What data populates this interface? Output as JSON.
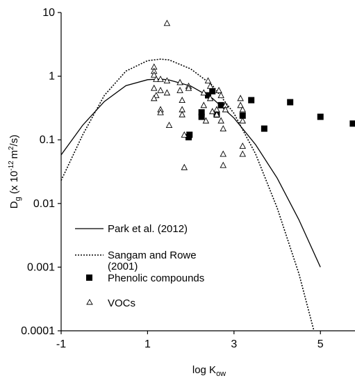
{
  "chart_data": {
    "type": "scatter",
    "title": "",
    "xlabel": {
      "main": "log K",
      "sub": "ow"
    },
    "ylabel": {
      "d": "D",
      "d_sub": "g",
      "open": " (x 10",
      "exp": "-12 ",
      "unit": "m",
      "unit_exp": "2",
      "close": "/s)"
    },
    "xlim": [
      -1,
      5.8
    ],
    "ylim": [
      0.0001,
      10
    ],
    "y_scale": "log",
    "grid": false,
    "legend_position": "bottom-left",
    "x_ticks": [
      {
        "value": -1,
        "label": "-1"
      },
      {
        "value": 1,
        "label": "1"
      },
      {
        "value": 3,
        "label": "3"
      },
      {
        "value": 5,
        "label": "5"
      }
    ],
    "y_ticks": [
      {
        "value": 10,
        "label": "10"
      },
      {
        "value": 1,
        "label": "1"
      },
      {
        "value": 0.1,
        "label": "0.1"
      },
      {
        "value": 0.01,
        "label": "0.01"
      },
      {
        "value": 0.001,
        "label": "0.001"
      },
      {
        "value": 0.0001,
        "label": "0.0001"
      }
    ],
    "series": [
      {
        "name": "Park et al. (2012)",
        "kind": "line",
        "dash": "solid",
        "points": [
          [
            -1,
            0.058
          ],
          [
            -0.5,
            0.17
          ],
          [
            0,
            0.4
          ],
          [
            0.5,
            0.71
          ],
          [
            1,
            0.88
          ],
          [
            1.3,
            0.9
          ],
          [
            1.5,
            0.87
          ],
          [
            2,
            0.7
          ],
          [
            2.5,
            0.45
          ],
          [
            3,
            0.22
          ],
          [
            3.5,
            0.084
          ],
          [
            4,
            0.025
          ],
          [
            4.5,
            0.0056
          ],
          [
            5,
            0.001
          ]
        ]
      },
      {
        "name": "Sangam and Rowe (2001)",
        "kind": "line",
        "dash": "dotted",
        "points": [
          [
            -1,
            0.023
          ],
          [
            -0.5,
            0.12
          ],
          [
            0,
            0.5
          ],
          [
            0.5,
            1.2
          ],
          [
            1,
            1.75
          ],
          [
            1.3,
            1.85
          ],
          [
            1.5,
            1.8
          ],
          [
            2,
            1.3
          ],
          [
            2.5,
            0.72
          ],
          [
            3,
            0.26
          ],
          [
            3.5,
            0.06
          ],
          [
            4,
            0.0085
          ],
          [
            4.5,
            0.0008
          ],
          [
            4.85,
            0.0001
          ]
        ]
      },
      {
        "name": "Phenolic compounds",
        "kind": "points",
        "marker": "filled-square",
        "points": [
          [
            1.95,
            0.11
          ],
          [
            1.97,
            0.12
          ],
          [
            2.25,
            0.27
          ],
          [
            2.25,
            0.23
          ],
          [
            2.4,
            0.5
          ],
          [
            2.5,
            0.58
          ],
          [
            2.6,
            0.25
          ],
          [
            2.7,
            0.35
          ],
          [
            3.2,
            0.24
          ],
          [
            3.4,
            0.42
          ],
          [
            3.7,
            0.15
          ],
          [
            4.3,
            0.39
          ],
          [
            5,
            0.23
          ],
          [
            5.75,
            0.18
          ]
        ]
      },
      {
        "name": "VOCs",
        "kind": "points",
        "marker": "open-triangle",
        "points": [
          [
            1.15,
            1.4
          ],
          [
            1.15,
            1.2
          ],
          [
            1.15,
            1.05
          ],
          [
            1.2,
            0.9
          ],
          [
            1.15,
            0.65
          ],
          [
            1.2,
            0.5
          ],
          [
            1.15,
            0.45
          ],
          [
            1.3,
            0.9
          ],
          [
            1.3,
            0.6
          ],
          [
            1.3,
            0.3
          ],
          [
            1.3,
            0.27
          ],
          [
            1.45,
            6.8
          ],
          [
            1.45,
            0.85
          ],
          [
            1.45,
            0.55
          ],
          [
            1.5,
            0.17
          ],
          [
            1.75,
            0.8
          ],
          [
            1.75,
            0.6
          ],
          [
            1.8,
            0.42
          ],
          [
            1.8,
            0.3
          ],
          [
            1.8,
            0.25
          ],
          [
            1.85,
            0.12
          ],
          [
            1.85,
            0.037
          ],
          [
            1.95,
            0.7
          ],
          [
            1.95,
            0.65
          ],
          [
            2.3,
            0.55
          ],
          [
            2.3,
            0.35
          ],
          [
            2.35,
            0.2
          ],
          [
            2.4,
            0.85
          ],
          [
            2.45,
            0.7
          ],
          [
            2.45,
            0.45
          ],
          [
            2.5,
            0.28
          ],
          [
            2.6,
            0.3
          ],
          [
            2.6,
            0.25
          ],
          [
            2.65,
            0.6
          ],
          [
            2.7,
            0.5
          ],
          [
            2.7,
            0.2
          ],
          [
            2.75,
            0.15
          ],
          [
            2.75,
            0.06
          ],
          [
            2.75,
            0.04
          ],
          [
            2.8,
            0.35
          ],
          [
            2.8,
            0.3
          ],
          [
            3.15,
            0.45
          ],
          [
            3.15,
            0.35
          ],
          [
            3.2,
            0.3
          ],
          [
            3.2,
            0.2
          ],
          [
            3.2,
            0.08
          ],
          [
            3.2,
            0.06
          ]
        ]
      }
    ]
  }
}
